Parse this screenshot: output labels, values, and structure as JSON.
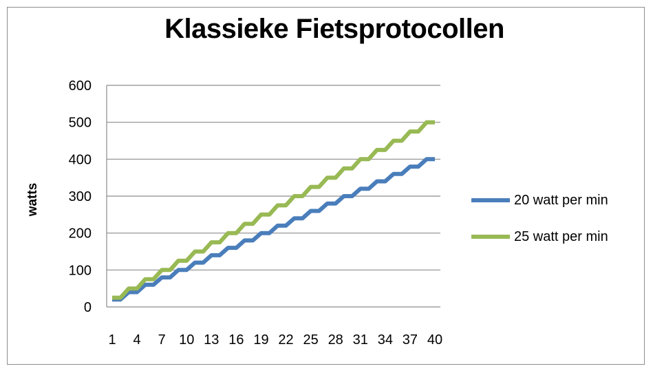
{
  "chart_data": {
    "type": "line",
    "title": "Klassieke Fietsprotocollen",
    "xlabel": "",
    "ylabel": "watts",
    "x": [
      1,
      2,
      3,
      4,
      5,
      6,
      7,
      8,
      9,
      10,
      11,
      12,
      13,
      14,
      15,
      16,
      17,
      18,
      19,
      20,
      21,
      22,
      23,
      24,
      25,
      26,
      27,
      28,
      29,
      30,
      31,
      32,
      33,
      34,
      35,
      36,
      37,
      38,
      39,
      40
    ],
    "x_tick_labels": [
      "1",
      "4",
      "7",
      "10",
      "13",
      "16",
      "19",
      "22",
      "25",
      "28",
      "31",
      "34",
      "37",
      "40"
    ],
    "y_tick_labels": [
      "0",
      "100",
      "200",
      "300",
      "400",
      "500",
      "600"
    ],
    "ylim": [
      0,
      600
    ],
    "grid": "horizontal",
    "legend_position": "right",
    "series": [
      {
        "name": "20 watt per min",
        "color": "#4a7ebb",
        "values": [
          20,
          20,
          40,
          40,
          60,
          60,
          80,
          80,
          100,
          100,
          120,
          120,
          140,
          140,
          160,
          160,
          180,
          180,
          200,
          200,
          220,
          220,
          240,
          240,
          260,
          260,
          280,
          280,
          300,
          300,
          320,
          320,
          340,
          340,
          360,
          360,
          380,
          380,
          400,
          400
        ]
      },
      {
        "name": "25 watt per min",
        "color": "#98b954",
        "values": [
          25,
          25,
          50,
          50,
          75,
          75,
          100,
          100,
          125,
          125,
          150,
          150,
          175,
          175,
          200,
          200,
          225,
          225,
          250,
          250,
          275,
          275,
          300,
          300,
          325,
          325,
          350,
          350,
          375,
          375,
          400,
          400,
          425,
          425,
          450,
          450,
          475,
          475,
          500,
          500
        ]
      }
    ]
  }
}
